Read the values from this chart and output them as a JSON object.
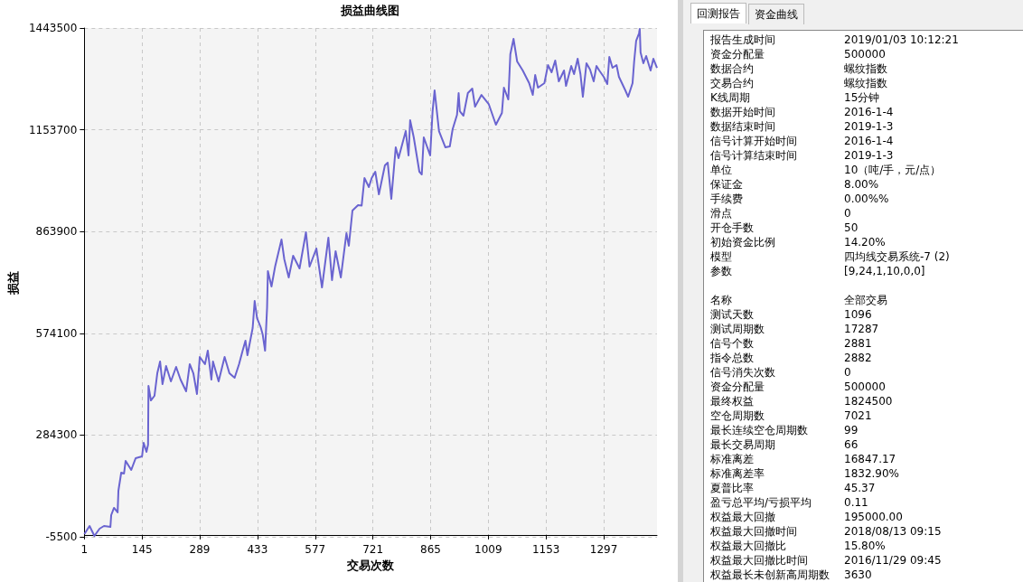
{
  "chart_data": [
    {
      "type": "line",
      "title": "损益曲线图",
      "xlabel": "交易次数",
      "ylabel": "损益",
      "color": "#6a64d0",
      "grid": true,
      "marker": "none",
      "line_style": "solid",
      "xlim": [
        1,
        1430
      ],
      "xticks": [
        1,
        145,
        289,
        433,
        577,
        721,
        865,
        1009,
        1153,
        1297
      ],
      "ylim": [
        -5500,
        1443500
      ],
      "yticks": [
        -5500,
        284300,
        574100,
        863900,
        1153700,
        1443500
      ],
      "x": [
        1,
        14,
        26,
        39,
        50,
        66,
        68,
        75,
        84,
        86,
        93,
        100,
        104,
        118,
        129,
        145,
        149,
        156,
        160,
        161,
        167,
        176,
        183,
        190,
        196,
        205,
        217,
        230,
        241,
        255,
        264,
        273,
        282,
        289,
        302,
        309,
        318,
        322,
        336,
        351,
        363,
        376,
        387,
        396,
        403,
        408,
        421,
        426,
        432,
        441,
        446,
        452,
        457,
        459,
        468,
        477,
        493,
        500,
        511,
        522,
        538,
        554,
        563,
        580,
        594,
        610,
        619,
        628,
        641,
        655,
        661,
        670,
        684,
        693,
        700,
        711,
        718,
        727,
        736,
        751,
        758,
        767,
        778,
        785,
        794,
        803,
        810,
        814,
        823,
        837,
        843,
        848,
        864,
        870,
        875,
        886,
        902,
        913,
        920,
        931,
        935,
        938,
        947,
        958,
        969,
        976,
        992,
        1010,
        1028,
        1043,
        1048,
        1059,
        1064,
        1072,
        1081,
        1095,
        1111,
        1120,
        1126,
        1133,
        1149,
        1158,
        1167,
        1176,
        1185,
        1198,
        1203,
        1216,
        1223,
        1232,
        1239,
        1245,
        1254,
        1263,
        1272,
        1279,
        1286,
        1297,
        1306,
        1311,
        1319,
        1329,
        1335,
        1351,
        1358,
        1369,
        1373,
        1378,
        1385,
        1387,
        1389,
        1396,
        1403,
        1414,
        1421,
        1430
      ],
      "values": [
        2200,
        25400,
        -2900,
        17700,
        25400,
        22800,
        56300,
        76900,
        64000,
        125800,
        177200,
        174700,
        210700,
        184900,
        218400,
        223600,
        262200,
        236400,
        257000,
        424300,
        383100,
        396000,
        460300,
        493800,
        429400,
        480900,
        437200,
        478300,
        442300,
        408900,
        486100,
        460300,
        401100,
        506600,
        486100,
        524700,
        442300,
        493800,
        437200,
        506600,
        460300,
        447500,
        486100,
        524700,
        553000,
        511800,
        589000,
        666200,
        617300,
        591600,
        571000,
        524700,
        648200,
        751100,
        707400,
        764000,
        841200,
        784600,
        733100,
        794900,
        758900,
        861800,
        764000,
        815500,
        704800,
        846400,
        725400,
        807800,
        733100,
        859200,
        823200,
        923600,
        939000,
        938000,
        1016200,
        990500,
        1016200,
        1034200,
        969900,
        1052300,
        1060000,
        957000,
        1103700,
        1072800,
        1111400,
        1150000,
        1080600,
        1180900,
        1132000,
        1034200,
        1026500,
        1132000,
        1080600,
        1206700,
        1265900,
        1150000,
        1103700,
        1106300,
        1155200,
        1196400,
        1258100,
        1206700,
        1193800,
        1258100,
        1271000,
        1219500,
        1253000,
        1227300,
        1168100,
        1201500,
        1273600,
        1240100,
        1368800,
        1412600,
        1348200,
        1322500,
        1286400,
        1253000,
        1309600,
        1273600,
        1286400,
        1337900,
        1317300,
        1350800,
        1291600,
        1322500,
        1278700,
        1335300,
        1312200,
        1355900,
        1312200,
        1247800,
        1343100,
        1325100,
        1291600,
        1335300,
        1322500,
        1304500,
        1283900,
        1361100,
        1330200,
        1337900,
        1304500,
        1265900,
        1247800,
        1286400,
        1348200,
        1407400,
        1428000,
        1440900,
        1373900,
        1343100,
        1363700,
        1322500,
        1355900,
        1330200
      ]
    },
    {
      "type": "other",
      "annotations": [
        "回测报告",
        "资金曲线",
        "报告生成时间",
        "2019/01/03 10:12:21",
        "资金分配量",
        "500000",
        "数据合约",
        "螺纹指数",
        "交易合约",
        "螺纹指数",
        "K线周期",
        "15分钟",
        "数据开始时间",
        "2016-1-4",
        "数据结束时间",
        "2019-1-3",
        "信号计算开始时间",
        "2016-1-4",
        "信号计算结束时间",
        "2019-1-3",
        "单位",
        "10（吨/手，元/点）",
        "保证金",
        "8.00%",
        "手续费",
        "0.00%%",
        "滑点",
        "0",
        "开仓手数",
        "50",
        "初始资金比例",
        "14.20%",
        "模型",
        "四均线交易系统-7 (2)",
        "参数",
        "[9,24,1,10,0,0]",
        "名称",
        "全部交易",
        "测试天数",
        "1096",
        "测试周期数",
        "17287",
        "信号个数",
        "2881",
        "指令总数",
        "2882",
        "信号消失次数",
        "0",
        "资金分配量",
        "500000",
        "最终权益",
        "1824500",
        "空仓周期数",
        "7021",
        "最长连续空仓周期数",
        "99",
        "最长交易周期",
        "66",
        "标准离差",
        "16847.17",
        "标准离差率",
        "1832.90%",
        "夏普比率",
        "45.37",
        "盈亏总平均/亏损平均",
        "0.11",
        "权益最大回撤",
        "195000.00",
        "权益最大回撤时间",
        "2018/08/13 09:15",
        "权益最大回撤比",
        "15.80%",
        "权益最大回撤比时间",
        "2016/11/29 09:45",
        "权益最长未创新高周期数",
        "3630"
      ]
    }
  ]
}
